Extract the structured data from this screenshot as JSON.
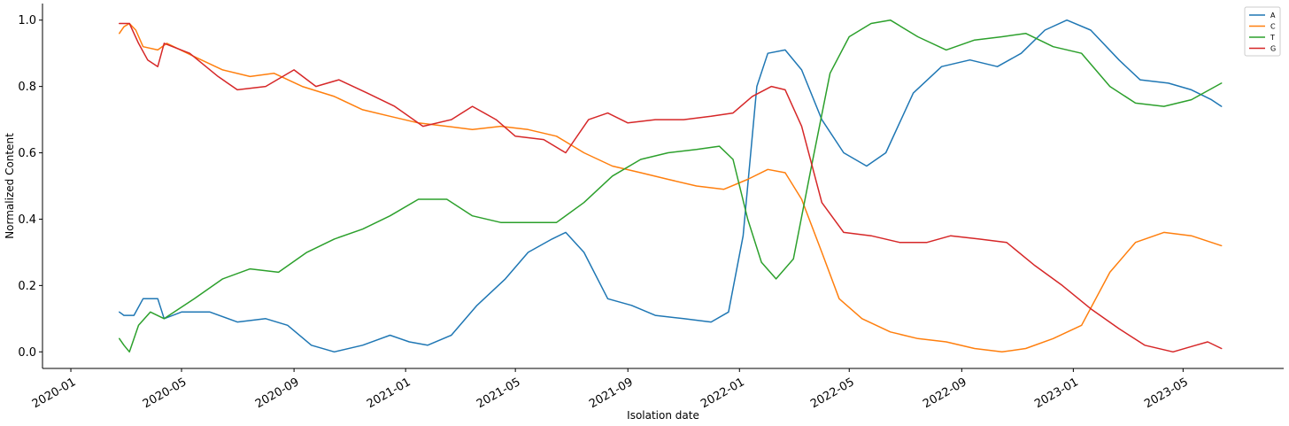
{
  "chart_data": {
    "type": "line",
    "xlabel": "Isolation date",
    "ylabel": "Normalized Content",
    "xlim": [
      "2019-12-01",
      "2023-08-19"
    ],
    "ylim": [
      -0.05,
      1.05
    ],
    "x_ticks": [
      "2020-01",
      "2020-05",
      "2020-09",
      "2021-01",
      "2021-05",
      "2021-09",
      "2022-01",
      "2022-05",
      "2022-09",
      "2023-01",
      "2023-05"
    ],
    "y_ticks": [
      "0.0",
      "0.2",
      "0.4",
      "0.6",
      "0.8",
      "1.0"
    ],
    "grid": false,
    "legend_position": "top-right",
    "series": [
      {
        "name": "A",
        "color": "#1f77b4",
        "points": [
          [
            "2020-02-23",
            0.12
          ],
          [
            "2020-02-28",
            0.11
          ],
          [
            "2020-03-10",
            0.11
          ],
          [
            "2020-03-20",
            0.16
          ],
          [
            "2020-04-05",
            0.16
          ],
          [
            "2020-04-12",
            0.1
          ],
          [
            "2020-05-01",
            0.12
          ],
          [
            "2020-06-01",
            0.12
          ],
          [
            "2020-07-01",
            0.09
          ],
          [
            "2020-08-01",
            0.1
          ],
          [
            "2020-08-25",
            0.08
          ],
          [
            "2020-09-20",
            0.02
          ],
          [
            "2020-10-15",
            0.0
          ],
          [
            "2020-11-15",
            0.02
          ],
          [
            "2020-12-15",
            0.05
          ],
          [
            "2021-01-05",
            0.03
          ],
          [
            "2021-01-25",
            0.02
          ],
          [
            "2021-02-20",
            0.05
          ],
          [
            "2021-03-20",
            0.14
          ],
          [
            "2021-04-20",
            0.22
          ],
          [
            "2021-05-15",
            0.3
          ],
          [
            "2021-06-10",
            0.34
          ],
          [
            "2021-06-25",
            0.36
          ],
          [
            "2021-07-15",
            0.3
          ],
          [
            "2021-08-10",
            0.16
          ],
          [
            "2021-09-05",
            0.14
          ],
          [
            "2021-10-01",
            0.11
          ],
          [
            "2021-11-01",
            0.1
          ],
          [
            "2021-12-01",
            0.09
          ],
          [
            "2021-12-20",
            0.12
          ],
          [
            "2022-01-05",
            0.35
          ],
          [
            "2022-01-20",
            0.8
          ],
          [
            "2022-02-01",
            0.9
          ],
          [
            "2022-02-20",
            0.91
          ],
          [
            "2022-03-10",
            0.85
          ],
          [
            "2022-04-01",
            0.7
          ],
          [
            "2022-04-25",
            0.6
          ],
          [
            "2022-05-20",
            0.56
          ],
          [
            "2022-06-10",
            0.6
          ],
          [
            "2022-07-10",
            0.78
          ],
          [
            "2022-08-10",
            0.86
          ],
          [
            "2022-09-10",
            0.88
          ],
          [
            "2022-10-10",
            0.86
          ],
          [
            "2022-11-05",
            0.9
          ],
          [
            "2022-12-01",
            0.97
          ],
          [
            "2022-12-25",
            1.0
          ],
          [
            "2023-01-20",
            0.97
          ],
          [
            "2023-02-20",
            0.88
          ],
          [
            "2023-03-15",
            0.82
          ],
          [
            "2023-04-15",
            0.81
          ],
          [
            "2023-05-10",
            0.79
          ],
          [
            "2023-06-01",
            0.76
          ],
          [
            "2023-06-12",
            0.74
          ]
        ]
      },
      {
        "name": "C",
        "color": "#ff7f0e",
        "points": [
          [
            "2020-02-23",
            0.96
          ],
          [
            "2020-02-28",
            0.98
          ],
          [
            "2020-03-05",
            0.99
          ],
          [
            "2020-03-12",
            0.97
          ],
          [
            "2020-03-20",
            0.92
          ],
          [
            "2020-04-05",
            0.91
          ],
          [
            "2020-04-15",
            0.93
          ],
          [
            "2020-05-15",
            0.89
          ],
          [
            "2020-06-15",
            0.85
          ],
          [
            "2020-07-15",
            0.83
          ],
          [
            "2020-08-10",
            0.84
          ],
          [
            "2020-09-10",
            0.8
          ],
          [
            "2020-10-15",
            0.77
          ],
          [
            "2020-11-15",
            0.73
          ],
          [
            "2020-12-15",
            0.71
          ],
          [
            "2021-01-15",
            0.69
          ],
          [
            "2021-02-15",
            0.68
          ],
          [
            "2021-03-15",
            0.67
          ],
          [
            "2021-04-15",
            0.68
          ],
          [
            "2021-05-15",
            0.67
          ],
          [
            "2021-06-15",
            0.65
          ],
          [
            "2021-07-15",
            0.6
          ],
          [
            "2021-08-15",
            0.56
          ],
          [
            "2021-09-15",
            0.54
          ],
          [
            "2021-10-15",
            0.52
          ],
          [
            "2021-11-15",
            0.5
          ],
          [
            "2021-12-15",
            0.49
          ],
          [
            "2022-01-10",
            0.52
          ],
          [
            "2022-02-01",
            0.55
          ],
          [
            "2022-02-20",
            0.54
          ],
          [
            "2022-03-10",
            0.46
          ],
          [
            "2022-04-01",
            0.3
          ],
          [
            "2022-04-20",
            0.16
          ],
          [
            "2022-05-15",
            0.1
          ],
          [
            "2022-06-15",
            0.06
          ],
          [
            "2022-07-15",
            0.04
          ],
          [
            "2022-08-15",
            0.03
          ],
          [
            "2022-09-15",
            0.01
          ],
          [
            "2022-10-15",
            0.0
          ],
          [
            "2022-11-10",
            0.01
          ],
          [
            "2022-12-10",
            0.04
          ],
          [
            "2023-01-10",
            0.08
          ],
          [
            "2023-02-10",
            0.24
          ],
          [
            "2023-03-10",
            0.33
          ],
          [
            "2023-04-10",
            0.36
          ],
          [
            "2023-05-10",
            0.35
          ],
          [
            "2023-06-12",
            0.32
          ]
        ]
      },
      {
        "name": "T",
        "color": "#2ca02c",
        "points": [
          [
            "2020-02-23",
            0.04
          ],
          [
            "2020-02-28",
            0.02
          ],
          [
            "2020-03-05",
            0.0
          ],
          [
            "2020-03-15",
            0.08
          ],
          [
            "2020-03-28",
            0.12
          ],
          [
            "2020-04-12",
            0.1
          ],
          [
            "2020-05-15",
            0.16
          ],
          [
            "2020-06-15",
            0.22
          ],
          [
            "2020-07-15",
            0.25
          ],
          [
            "2020-08-15",
            0.24
          ],
          [
            "2020-09-15",
            0.3
          ],
          [
            "2020-10-15",
            0.34
          ],
          [
            "2020-11-15",
            0.37
          ],
          [
            "2020-12-15",
            0.41
          ],
          [
            "2021-01-15",
            0.46
          ],
          [
            "2021-02-15",
            0.46
          ],
          [
            "2021-03-15",
            0.41
          ],
          [
            "2021-04-15",
            0.39
          ],
          [
            "2021-05-15",
            0.39
          ],
          [
            "2021-06-15",
            0.39
          ],
          [
            "2021-07-15",
            0.45
          ],
          [
            "2021-08-15",
            0.53
          ],
          [
            "2021-09-15",
            0.58
          ],
          [
            "2021-10-15",
            0.6
          ],
          [
            "2021-11-15",
            0.61
          ],
          [
            "2021-12-10",
            0.62
          ],
          [
            "2021-12-25",
            0.58
          ],
          [
            "2022-01-10",
            0.4
          ],
          [
            "2022-01-25",
            0.27
          ],
          [
            "2022-02-10",
            0.22
          ],
          [
            "2022-03-01",
            0.28
          ],
          [
            "2022-03-20",
            0.55
          ],
          [
            "2022-04-10",
            0.84
          ],
          [
            "2022-05-01",
            0.95
          ],
          [
            "2022-05-25",
            0.99
          ],
          [
            "2022-06-15",
            1.0
          ],
          [
            "2022-07-15",
            0.95
          ],
          [
            "2022-08-15",
            0.91
          ],
          [
            "2022-09-15",
            0.94
          ],
          [
            "2022-10-15",
            0.95
          ],
          [
            "2022-11-10",
            0.96
          ],
          [
            "2022-12-10",
            0.92
          ],
          [
            "2023-01-10",
            0.9
          ],
          [
            "2023-02-10",
            0.8
          ],
          [
            "2023-03-10",
            0.75
          ],
          [
            "2023-04-10",
            0.74
          ],
          [
            "2023-05-10",
            0.76
          ],
          [
            "2023-06-12",
            0.81
          ]
        ]
      },
      {
        "name": "G",
        "color": "#d62728",
        "points": [
          [
            "2020-02-23",
            0.99
          ],
          [
            "2020-03-05",
            0.99
          ],
          [
            "2020-03-15",
            0.93
          ],
          [
            "2020-03-25",
            0.88
          ],
          [
            "2020-04-05",
            0.86
          ],
          [
            "2020-04-12",
            0.93
          ],
          [
            "2020-05-10",
            0.9
          ],
          [
            "2020-06-10",
            0.83
          ],
          [
            "2020-07-01",
            0.79
          ],
          [
            "2020-08-01",
            0.8
          ],
          [
            "2020-09-01",
            0.85
          ],
          [
            "2020-09-25",
            0.8
          ],
          [
            "2020-10-20",
            0.82
          ],
          [
            "2020-11-20",
            0.78
          ],
          [
            "2020-12-20",
            0.74
          ],
          [
            "2021-01-20",
            0.68
          ],
          [
            "2021-02-20",
            0.7
          ],
          [
            "2021-03-15",
            0.74
          ],
          [
            "2021-04-10",
            0.7
          ],
          [
            "2021-05-01",
            0.65
          ],
          [
            "2021-06-01",
            0.64
          ],
          [
            "2021-06-25",
            0.6
          ],
          [
            "2021-07-20",
            0.7
          ],
          [
            "2021-08-10",
            0.72
          ],
          [
            "2021-09-01",
            0.69
          ],
          [
            "2021-10-01",
            0.7
          ],
          [
            "2021-11-01",
            0.7
          ],
          [
            "2021-12-01",
            0.71
          ],
          [
            "2021-12-25",
            0.72
          ],
          [
            "2022-01-15",
            0.77
          ],
          [
            "2022-02-05",
            0.8
          ],
          [
            "2022-02-20",
            0.79
          ],
          [
            "2022-03-10",
            0.68
          ],
          [
            "2022-04-01",
            0.45
          ],
          [
            "2022-04-25",
            0.36
          ],
          [
            "2022-05-25",
            0.35
          ],
          [
            "2022-06-25",
            0.33
          ],
          [
            "2022-07-25",
            0.33
          ],
          [
            "2022-08-20",
            0.35
          ],
          [
            "2022-09-20",
            0.34
          ],
          [
            "2022-10-20",
            0.33
          ],
          [
            "2022-11-20",
            0.26
          ],
          [
            "2022-12-20",
            0.2
          ],
          [
            "2023-01-20",
            0.13
          ],
          [
            "2023-02-20",
            0.07
          ],
          [
            "2023-03-20",
            0.02
          ],
          [
            "2023-04-20",
            0.0
          ],
          [
            "2023-05-15",
            0.02
          ],
          [
            "2023-05-28",
            0.03
          ],
          [
            "2023-06-12",
            0.01
          ]
        ]
      }
    ]
  }
}
